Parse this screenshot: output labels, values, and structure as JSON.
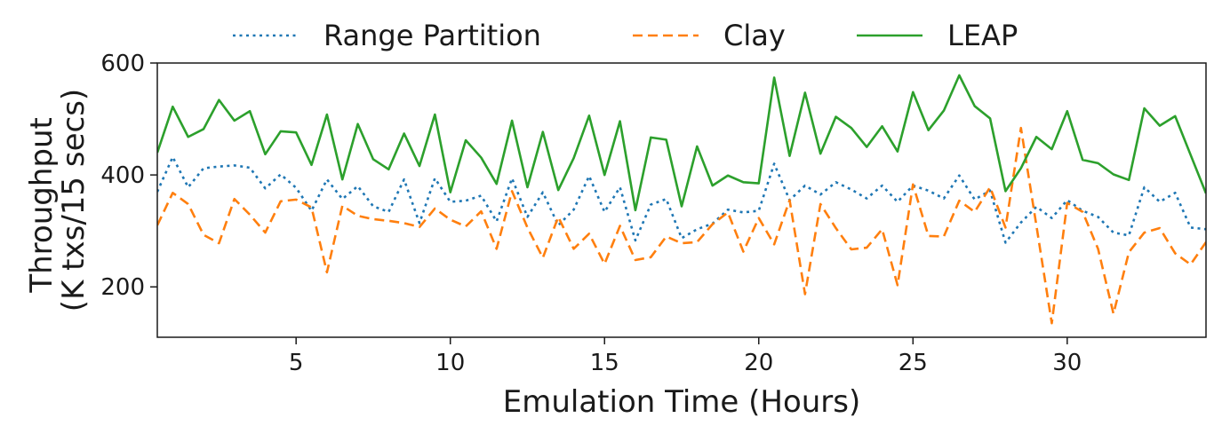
{
  "chart_data": {
    "type": "line",
    "xlabel": "Emulation Time (Hours)",
    "ylabel_lines": [
      "Throughput",
      "(K txs/15 secs)"
    ],
    "xlim": [
      0.5,
      34.5
    ],
    "ylim": [
      110,
      600
    ],
    "xticks": [
      5,
      10,
      15,
      20,
      25,
      30
    ],
    "yticks": [
      200,
      400,
      600
    ],
    "grid": false,
    "legend_position": "top",
    "series": [
      {
        "name": "Range Partition",
        "color": "#1f77b4",
        "dash": "dotted",
        "x": [
          0.5,
          1.0,
          1.5,
          2.0,
          2.5,
          3.0,
          3.5,
          4.0,
          4.5,
          5.0,
          5.5,
          6.0,
          6.5,
          7.0,
          7.5,
          8.0,
          8.5,
          9.0,
          9.5,
          10.0,
          10.5,
          11.0,
          11.5,
          12.0,
          12.5,
          13.0,
          13.5,
          14.0,
          14.5,
          15.0,
          15.5,
          16.0,
          16.5,
          17.0,
          17.5,
          18.0,
          18.5,
          19.0,
          19.5,
          20.0,
          20.5,
          21.0,
          21.5,
          22.0,
          22.5,
          23.0,
          23.5,
          24.0,
          24.5,
          25.0,
          25.5,
          26.0,
          26.5,
          27.0,
          27.5,
          28.0,
          28.5,
          29.0,
          29.5,
          30.0,
          30.5,
          31.0,
          31.5,
          32.0,
          32.5,
          33.0,
          33.5,
          34.0,
          34.5
        ],
        "values": [
          370,
          432,
          378,
          412,
          415,
          417,
          413,
          376,
          401,
          377,
          336,
          392,
          357,
          380,
          344,
          334,
          392,
          314,
          394,
          352,
          354,
          363,
          317,
          394,
          325,
          369,
          310,
          338,
          398,
          334,
          378,
          283,
          347,
          357,
          287,
          303,
          313,
          338,
          333,
          336,
          420,
          355,
          381,
          365,
          387,
          374,
          358,
          381,
          352,
          381,
          372,
          358,
          399,
          356,
          372,
          279,
          315,
          343,
          323,
          355,
          336,
          325,
          297,
          292,
          378,
          352,
          368,
          306,
          303
        ]
      },
      {
        "name": "Clay",
        "color": "#ff7f0e",
        "dash": "dashed",
        "x": [
          0.5,
          1.0,
          1.5,
          2.0,
          2.5,
          3.0,
          3.5,
          4.0,
          4.5,
          5.0,
          5.5,
          6.0,
          6.5,
          7.0,
          7.5,
          8.0,
          8.5,
          9.0,
          9.5,
          10.0,
          10.5,
          11.0,
          11.5,
          12.0,
          12.5,
          13.0,
          13.5,
          14.0,
          14.5,
          15.0,
          15.5,
          16.0,
          16.5,
          17.0,
          17.5,
          18.0,
          18.5,
          19.0,
          19.5,
          20.0,
          20.5,
          21.0,
          21.5,
          22.0,
          22.5,
          23.0,
          23.5,
          24.0,
          24.5,
          25.0,
          25.5,
          26.0,
          26.5,
          27.0,
          27.5,
          28.0,
          28.5,
          29.0,
          29.5,
          30.0,
          30.5,
          31.0,
          31.5,
          32.0,
          32.5,
          33.0,
          33.5,
          34.0,
          34.5
        ],
        "values": [
          310,
          368,
          348,
          293,
          278,
          357,
          329,
          297,
          353,
          356,
          342,
          226,
          345,
          327,
          321,
          318,
          314,
          307,
          340,
          320,
          308,
          335,
          268,
          371,
          306,
          252,
          325,
          268,
          295,
          241,
          309,
          248,
          253,
          290,
          278,
          280,
          312,
          333,
          263,
          323,
          276,
          355,
          187,
          348,
          305,
          267,
          270,
          303,
          203,
          383,
          291,
          290,
          354,
          334,
          378,
          306,
          484,
          310,
          135,
          350,
          334,
          268,
          152,
          262,
          297,
          305,
          260,
          240,
          280
        ]
      },
      {
        "name": "LEAP",
        "color": "#2ca02c",
        "dash": "solid",
        "x": [
          0.5,
          1.0,
          1.5,
          2.0,
          2.5,
          3.0,
          3.5,
          4.0,
          4.5,
          5.0,
          5.5,
          6.0,
          6.5,
          7.0,
          7.5,
          8.0,
          8.5,
          9.0,
          9.5,
          10.0,
          10.5,
          11.0,
          11.5,
          12.0,
          12.5,
          13.0,
          13.5,
          14.0,
          14.5,
          15.0,
          15.5,
          16.0,
          16.5,
          17.0,
          17.5,
          18.0,
          18.5,
          19.0,
          19.5,
          20.0,
          20.5,
          21.0,
          21.5,
          22.0,
          22.5,
          23.0,
          23.5,
          24.0,
          24.5,
          25.0,
          25.5,
          26.0,
          26.5,
          27.0,
          27.5,
          28.0,
          28.5,
          29.0,
          29.5,
          30.0,
          30.5,
          31.0,
          31.5,
          32.0,
          32.5,
          33.0,
          33.5,
          34.0,
          34.5
        ],
        "values": [
          440,
          522,
          468,
          482,
          534,
          497,
          514,
          437,
          478,
          476,
          418,
          508,
          392,
          491,
          428,
          410,
          474,
          416,
          508,
          369,
          462,
          431,
          384,
          497,
          378,
          477,
          373,
          430,
          506,
          400,
          496,
          337,
          467,
          463,
          344,
          451,
          381,
          399,
          387,
          385,
          574,
          434,
          547,
          438,
          504,
          484,
          450,
          487,
          442,
          548,
          480,
          515,
          578,
          523,
          501,
          371,
          412,
          468,
          446,
          514,
          427,
          421,
          401,
          391,
          519,
          488,
          505,
          436,
          367
        ]
      }
    ]
  }
}
